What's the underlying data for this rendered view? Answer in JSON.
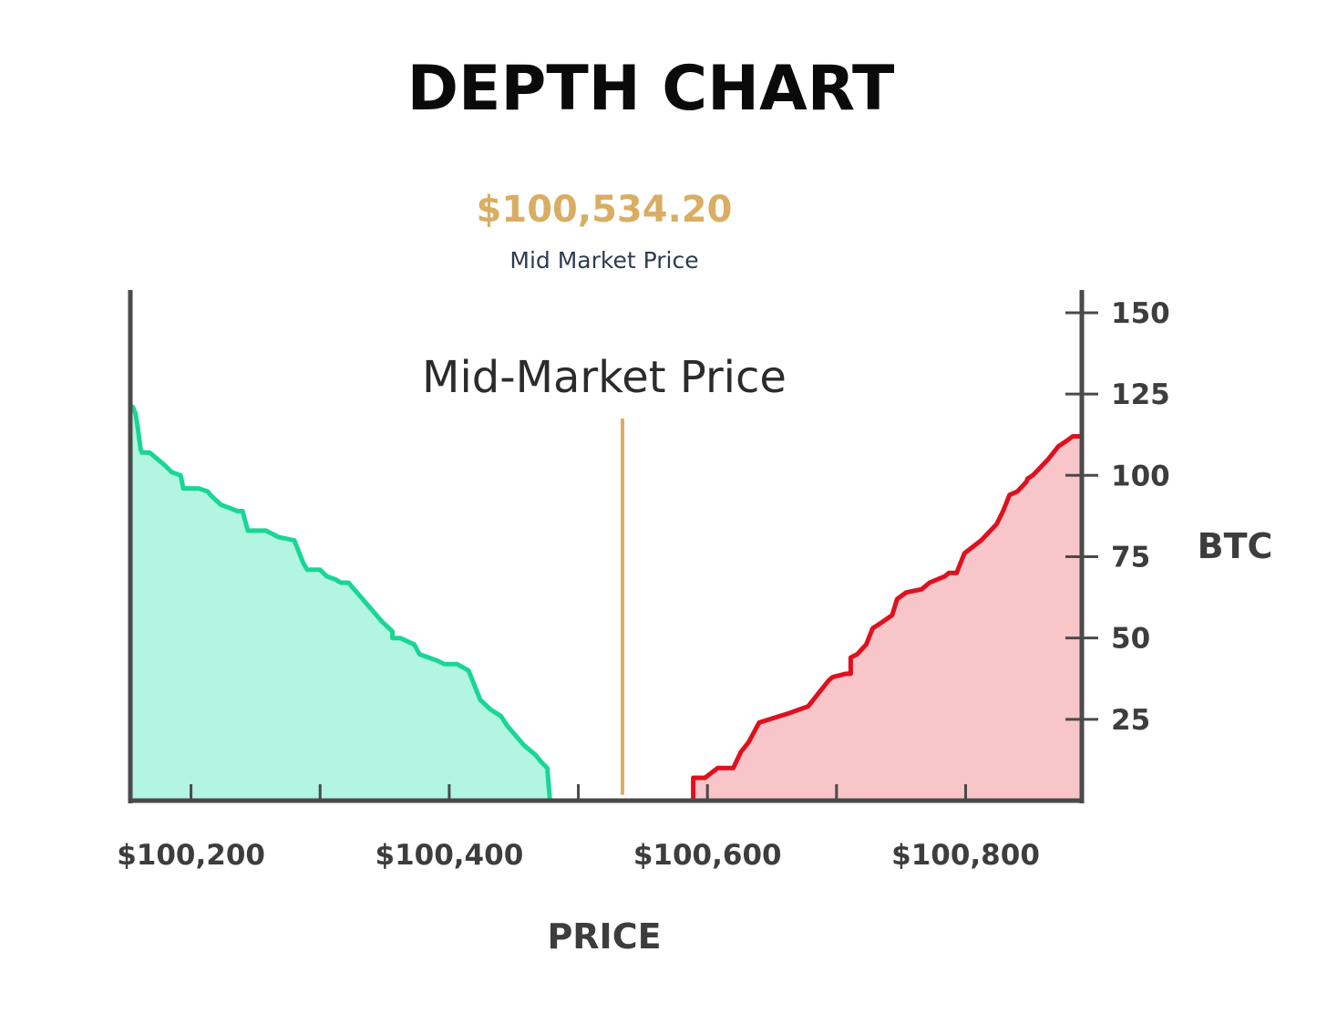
{
  "chart_data": {
    "type": "area",
    "title": "DEPTH CHART",
    "xlabel": "PRICE",
    "ylabel": "BTC",
    "xlim": [
      100153,
      100890
    ],
    "ylim": [
      0,
      157
    ],
    "x_ticks": [
      100200,
      100300,
      100400,
      100500,
      100600,
      100700,
      100800
    ],
    "x_tick_labels": [
      "$100,200",
      "",
      "$100,400",
      "",
      "$100,600",
      "",
      "$100,800"
    ],
    "y_ticks": [
      25,
      50,
      75,
      100,
      125,
      150
    ],
    "y_tick_labels": [
      "25",
      "50",
      "75",
      "100",
      "125",
      "150"
    ],
    "mid_market": {
      "price_text": "$100,534.20",
      "subtitle": "Mid Market Price",
      "annotation": "Mid-Market Price",
      "value": 100534.2,
      "line_top": 117
    },
    "grid": false,
    "legend": "none",
    "colors": {
      "bid_line": "#1ad694",
      "bid_fill": "#b2f5e1",
      "ask_line": "#e0101e",
      "ask_fill": "#f8c5c8",
      "mid": "#d9ae63",
      "axis": "#4a4a4a"
    },
    "series": [
      {
        "side": "bid",
        "x": [
          100155,
          100157,
          100159,
          100161,
          100162,
          100168,
          100180,
          100185,
          100192,
          100194,
          100206,
          100213,
          100215,
          100223,
          100236,
          100240,
          100244,
          100258,
          100268,
          100280,
          100287,
          100290,
          100300,
          100305,
          100312,
          100316,
          100322,
          100348,
          100356,
          100356,
          100362,
          100373,
          100377,
          100391,
          100396,
          100406,
          100415,
          100424,
          100432,
          100440,
          100445,
          100458,
          100467,
          100471,
          100476,
          100478
        ],
        "y": [
          121,
          119,
          114,
          108,
          107,
          107,
          103,
          101,
          100,
          96,
          96,
          95,
          94,
          91,
          89,
          89,
          83,
          83,
          81,
          80,
          73,
          71,
          71,
          69,
          68,
          67,
          67,
          55,
          52,
          50,
          50,
          48,
          45,
          43,
          42,
          42,
          40,
          31,
          28,
          26,
          23,
          17,
          14,
          12,
          10,
          0
        ],
        "values": [
          121,
          119,
          114,
          108,
          107,
          107,
          103,
          101,
          100,
          96,
          96,
          95,
          94,
          91,
          89,
          89,
          83,
          83,
          81,
          80,
          73,
          71,
          71,
          69,
          68,
          67,
          67,
          55,
          52,
          50,
          50,
          48,
          45,
          43,
          42,
          42,
          40,
          31,
          28,
          26,
          23,
          17,
          14,
          12,
          10,
          0
        ]
      },
      {
        "side": "ask",
        "x": [
          100589,
          100589,
          100598,
          100608,
          100620,
          100626,
          100632,
          100640,
          100664,
          100678,
          100688,
          100694,
          100697,
          100707,
          100711,
          100711,
          100716,
          100723,
          100728,
          100732,
          100743,
          100747,
          100754,
          100766,
          100772,
          100784,
          100787,
          100793,
          100799,
          100812,
          100824,
          100829,
          100834,
          100840,
          100847,
          100848,
          100852,
          100864,
          100872,
          100876,
          100883,
          100890
        ],
        "y": [
          0,
          7,
          7,
          10,
          10,
          15,
          18,
          24,
          27,
          29,
          34,
          37,
          38,
          39,
          39,
          44,
          45,
          48,
          53,
          54,
          57,
          62,
          64,
          65,
          67,
          69,
          70,
          70,
          76,
          80,
          85,
          89,
          94,
          95,
          98,
          99,
          100,
          105,
          109,
          110,
          112,
          112
        ],
        "values": [
          0,
          7,
          7,
          10,
          10,
          15,
          18,
          24,
          27,
          29,
          34,
          37,
          38,
          39,
          39,
          44,
          45,
          48,
          53,
          54,
          57,
          62,
          64,
          65,
          67,
          69,
          70,
          70,
          76,
          80,
          85,
          89,
          94,
          95,
          98,
          99,
          100,
          105,
          109,
          110,
          112,
          112
        ]
      }
    ]
  }
}
